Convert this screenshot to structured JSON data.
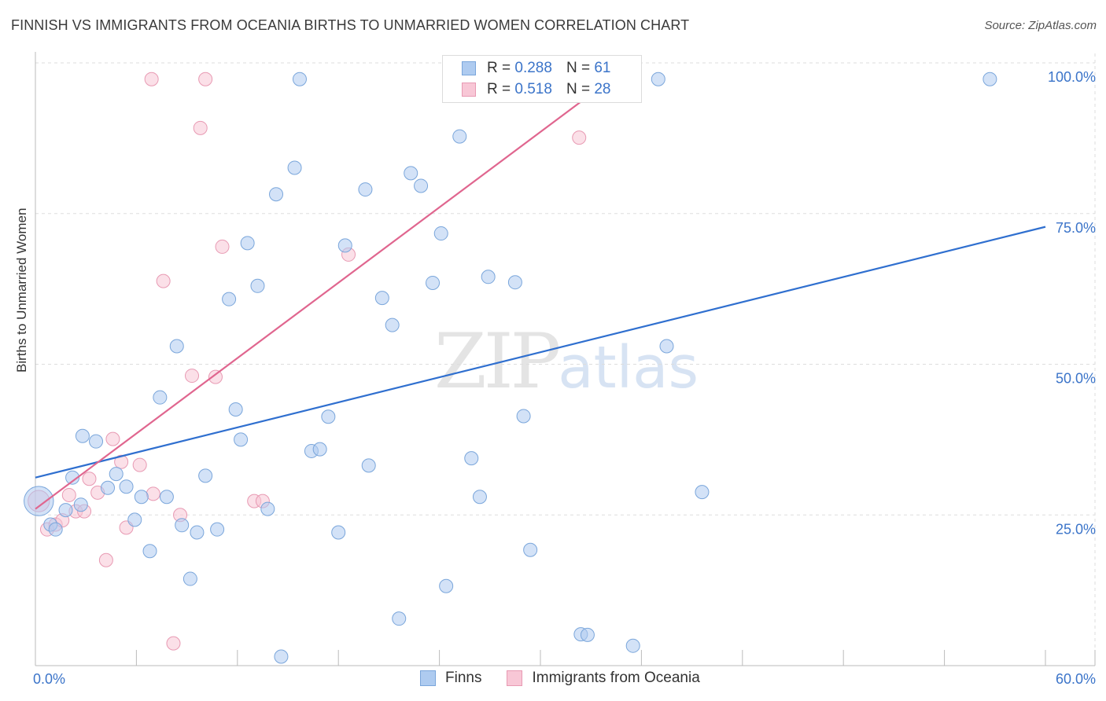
{
  "title": "FINNISH VS IMMIGRANTS FROM OCEANIA BIRTHS TO UNMARRIED WOMEN CORRELATION CHART",
  "source": "Source: ZipAtlas.com",
  "watermark": {
    "zip": "ZIP",
    "atlas": "atlas"
  },
  "colors": {
    "finns_fill": "#aecbf0",
    "finns_stroke": "#7aa6db",
    "finns_line": "#2f6fcf",
    "oceania_fill": "#f8c7d6",
    "oceania_stroke": "#e89ab3",
    "oceania_line": "#e0668f",
    "axis_text": "#3b74c9",
    "grid": "#dddddd"
  },
  "legend_top": {
    "finns": {
      "r_label": "R =",
      "r_value": "0.288",
      "n_label": "N =",
      "n_value": "61"
    },
    "oceania": {
      "r_label": "R =",
      "r_value": "0.518",
      "n_label": "N =",
      "n_value": "28"
    }
  },
  "legend_bottom": {
    "finns": "Finns",
    "oceania": "Immigrants from Oceania"
  },
  "chart_data": {
    "type": "scatter",
    "title": "FINNISH VS IMMIGRANTS FROM OCEANIA BIRTHS TO UNMARRIED WOMEN CORRELATION CHART",
    "xlabel": "",
    "ylabel": "Births to Unmarried Women",
    "xlim": [
      0,
      60
    ],
    "ylim": [
      0,
      100
    ],
    "x_tick_labels": [
      "0.0%",
      "60.0%"
    ],
    "y_tick_labels": [
      "25.0%",
      "50.0%",
      "75.0%",
      "100.0%"
    ],
    "y_ticks": [
      25,
      50,
      75,
      100
    ],
    "series": [
      {
        "name": "Finns",
        "R": 0.288,
        "N": 61,
        "trend": {
          "x": [
            0,
            60
          ],
          "y": [
            31.2,
            72.8
          ]
        },
        "points": [
          {
            "x": 0.2,
            "y": 27.3,
            "s": 2.2
          },
          {
            "x": 0.9,
            "y": 23.4
          },
          {
            "x": 1.2,
            "y": 22.6
          },
          {
            "x": 1.8,
            "y": 25.8
          },
          {
            "x": 2.2,
            "y": 31.2
          },
          {
            "x": 2.7,
            "y": 26.7
          },
          {
            "x": 2.8,
            "y": 38.1
          },
          {
            "x": 3.6,
            "y": 37.2
          },
          {
            "x": 4.3,
            "y": 29.5
          },
          {
            "x": 4.8,
            "y": 31.8
          },
          {
            "x": 5.4,
            "y": 29.7
          },
          {
            "x": 5.9,
            "y": 24.2
          },
          {
            "x": 6.3,
            "y": 28.0
          },
          {
            "x": 6.8,
            "y": 19.0
          },
          {
            "x": 7.4,
            "y": 44.5
          },
          {
            "x": 7.8,
            "y": 28.0
          },
          {
            "x": 8.4,
            "y": 53.0
          },
          {
            "x": 8.7,
            "y": 23.3
          },
          {
            "x": 9.2,
            "y": 14.4
          },
          {
            "x": 9.6,
            "y": 22.1
          },
          {
            "x": 10.1,
            "y": 31.5
          },
          {
            "x": 10.8,
            "y": 22.6
          },
          {
            "x": 11.5,
            "y": 60.8
          },
          {
            "x": 11.9,
            "y": 42.5
          },
          {
            "x": 12.2,
            "y": 37.5
          },
          {
            "x": 12.6,
            "y": 70.1
          },
          {
            "x": 13.2,
            "y": 63.0
          },
          {
            "x": 13.8,
            "y": 26.0
          },
          {
            "x": 14.3,
            "y": 78.2
          },
          {
            "x": 14.6,
            "y": 1.5
          },
          {
            "x": 15.4,
            "y": 82.6
          },
          {
            "x": 15.7,
            "y": 97.3
          },
          {
            "x": 16.4,
            "y": 35.6
          },
          {
            "x": 16.9,
            "y": 35.9
          },
          {
            "x": 17.4,
            "y": 41.3
          },
          {
            "x": 18.0,
            "y": 22.1
          },
          {
            "x": 18.4,
            "y": 69.7
          },
          {
            "x": 19.6,
            "y": 79.0
          },
          {
            "x": 19.8,
            "y": 33.2
          },
          {
            "x": 20.6,
            "y": 61.0
          },
          {
            "x": 21.2,
            "y": 56.5
          },
          {
            "x": 21.6,
            "y": 7.8
          },
          {
            "x": 22.3,
            "y": 81.7
          },
          {
            "x": 22.9,
            "y": 79.6
          },
          {
            "x": 23.6,
            "y": 63.5
          },
          {
            "x": 24.1,
            "y": 71.7
          },
          {
            "x": 24.4,
            "y": 13.2
          },
          {
            "x": 25.2,
            "y": 87.8
          },
          {
            "x": 25.9,
            "y": 34.4
          },
          {
            "x": 26.4,
            "y": 28.0
          },
          {
            "x": 26.9,
            "y": 64.5
          },
          {
            "x": 28.5,
            "y": 63.6
          },
          {
            "x": 29.0,
            "y": 41.4
          },
          {
            "x": 29.4,
            "y": 19.2
          },
          {
            "x": 32.4,
            "y": 5.2
          },
          {
            "x": 32.8,
            "y": 5.1
          },
          {
            "x": 35.5,
            "y": 3.3
          },
          {
            "x": 37.0,
            "y": 97.3
          },
          {
            "x": 37.5,
            "y": 53.0
          },
          {
            "x": 39.6,
            "y": 28.8
          },
          {
            "x": 56.7,
            "y": 97.3
          }
        ]
      },
      {
        "name": "Immigrants from Oceania",
        "R": 0.518,
        "N": 28,
        "trend": {
          "x": [
            0,
            34.2
          ],
          "y": [
            26.0,
            97.3
          ]
        },
        "points": [
          {
            "x": 0.2,
            "y": 27.3,
            "s": 1.6
          },
          {
            "x": 0.7,
            "y": 22.6
          },
          {
            "x": 1.2,
            "y": 23.4
          },
          {
            "x": 1.6,
            "y": 24.1
          },
          {
            "x": 2.0,
            "y": 28.3
          },
          {
            "x": 2.4,
            "y": 25.6
          },
          {
            "x": 2.9,
            "y": 25.6
          },
          {
            "x": 3.2,
            "y": 31.0
          },
          {
            "x": 3.7,
            "y": 28.7
          },
          {
            "x": 4.2,
            "y": 17.5
          },
          {
            "x": 4.6,
            "y": 37.6
          },
          {
            "x": 5.1,
            "y": 33.8
          },
          {
            "x": 5.4,
            "y": 22.9
          },
          {
            "x": 6.2,
            "y": 33.3
          },
          {
            "x": 6.9,
            "y": 97.3
          },
          {
            "x": 7.0,
            "y": 28.5
          },
          {
            "x": 7.6,
            "y": 63.8
          },
          {
            "x": 8.2,
            "y": 3.7
          },
          {
            "x": 8.6,
            "y": 25.0
          },
          {
            "x": 9.3,
            "y": 48.1
          },
          {
            "x": 9.8,
            "y": 89.2
          },
          {
            "x": 10.1,
            "y": 97.3
          },
          {
            "x": 10.7,
            "y": 47.9
          },
          {
            "x": 11.1,
            "y": 69.5
          },
          {
            "x": 13.0,
            "y": 27.3
          },
          {
            "x": 13.5,
            "y": 27.3
          },
          {
            "x": 18.6,
            "y": 68.2
          },
          {
            "x": 32.3,
            "y": 87.6
          }
        ]
      }
    ]
  }
}
